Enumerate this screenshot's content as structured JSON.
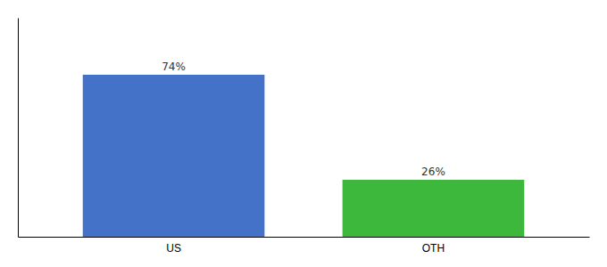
{
  "chart_data": {
    "type": "bar",
    "categories": [
      "US",
      "OTH"
    ],
    "values": [
      74,
      26
    ],
    "value_labels": [
      "74%",
      "26%"
    ],
    "colors": [
      "#4472c9",
      "#3db83d"
    ],
    "ylim": [
      0,
      100
    ],
    "data_labels": true,
    "tick_labels": "x"
  }
}
